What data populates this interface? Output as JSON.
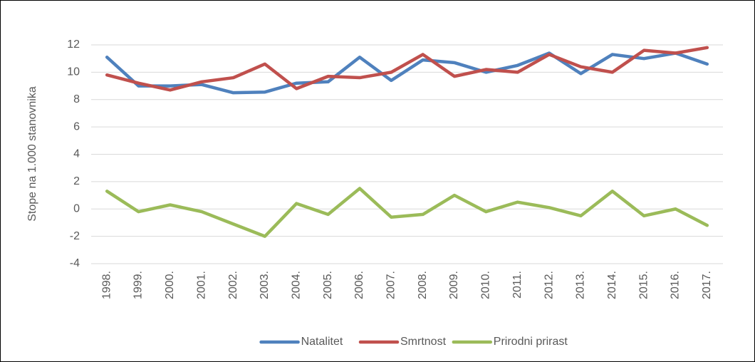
{
  "chart_data": {
    "type": "line",
    "y_label": "Stope na 1.000 stanovnika",
    "categories": [
      "1998.",
      "1999.",
      "2000.",
      "2001.",
      "2002.",
      "2003.",
      "2004.",
      "2005.",
      "2006.",
      "2007.",
      "2008.",
      "2009.",
      "2010.",
      "2011.",
      "2012.",
      "2013.",
      "2014.",
      "2015.",
      "2016.",
      "2017."
    ],
    "series": [
      {
        "name": "Natalitet",
        "color": "#4f81bd",
        "values": [
          11.1,
          9.0,
          9.0,
          9.1,
          8.5,
          8.55,
          9.2,
          9.3,
          11.1,
          9.4,
          10.9,
          10.7,
          10.0,
          10.5,
          11.4,
          9.9,
          11.3,
          11.0,
          11.4,
          10.6
        ]
      },
      {
        "name": "Smrtnost",
        "color": "#c0504d",
        "values": [
          9.8,
          9.2,
          8.7,
          9.3,
          9.6,
          10.6,
          8.8,
          9.7,
          9.6,
          10.0,
          11.3,
          9.7,
          10.2,
          10.0,
          11.3,
          10.4,
          10.0,
          11.6,
          11.4,
          11.8
        ]
      },
      {
        "name": "Prirodni prirast",
        "color": "#9bbb59",
        "values": [
          1.3,
          -0.2,
          0.3,
          -0.2,
          -1.1,
          -2.0,
          0.4,
          -0.4,
          1.5,
          -0.6,
          -0.4,
          1.0,
          -0.2,
          0.5,
          0.1,
          -0.5,
          1.3,
          -0.5,
          0.0,
          -1.2
        ]
      }
    ],
    "ylim": [
      -4,
      12
    ],
    "yticks": [
      -4,
      -2,
      0,
      2,
      4,
      6,
      8,
      10,
      12
    ],
    "grid": true,
    "legend": "bottom"
  }
}
